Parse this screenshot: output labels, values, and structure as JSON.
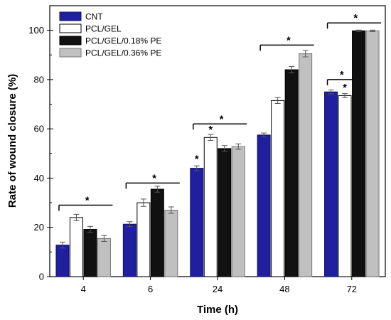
{
  "chart_data": {
    "type": "bar",
    "categories": [
      "4",
      "6",
      "24",
      "48",
      "72"
    ],
    "series": [
      {
        "name": "CNT",
        "values": [
          12.8,
          21.3,
          44.0,
          57.5,
          75.0
        ],
        "errors": [
          1.2,
          1.0,
          1.0,
          0.8,
          0.8
        ],
        "color": "#1f1fa0",
        "stroke": "#10106a"
      },
      {
        "name": "PCL/GEL",
        "values": [
          24.0,
          30.0,
          56.5,
          71.5,
          73.5
        ],
        "errors": [
          1.3,
          1.5,
          1.2,
          1.2,
          0.8
        ],
        "color": "#ffffff",
        "stroke": "#000000"
      },
      {
        "name": "PCL/GEL/0.18% PE",
        "values": [
          19.2,
          35.5,
          52.0,
          84.0,
          99.8
        ],
        "errors": [
          1.2,
          1.2,
          1.2,
          1.3,
          0.3
        ],
        "color": "#111111",
        "stroke": "#000000"
      },
      {
        "name": "PCL/GEL/0.36% PE",
        "values": [
          15.5,
          27.0,
          52.8,
          90.5,
          99.8
        ],
        "errors": [
          1.2,
          1.3,
          1.1,
          1.3,
          0.3
        ],
        "color": "#c0c0c0",
        "stroke": "#777777"
      }
    ],
    "xlabel": "Time (h)",
    "ylabel": "Rate of wound closure (%)",
    "ylim": [
      0,
      110
    ],
    "yticks": [
      0,
      20,
      40,
      60,
      80,
      100
    ],
    "grid": false,
    "legend_position": "top-left",
    "significance": [
      {
        "kind": "bracket",
        "group": 0,
        "from_series": 0,
        "to_series": 3,
        "y": 29,
        "label": "*"
      },
      {
        "kind": "bracket",
        "group": 1,
        "from_series": 0,
        "to_series": 3,
        "y": 38,
        "label": "*"
      },
      {
        "kind": "bracket",
        "group": 2,
        "from_series": 0,
        "to_series": 3,
        "y": 62,
        "label": "*"
      },
      {
        "kind": "star",
        "group": 2,
        "series": 0,
        "y": 47.5,
        "label": "*"
      },
      {
        "kind": "star",
        "group": 2,
        "series": 1,
        "y": 59.5,
        "label": "*"
      },
      {
        "kind": "bracket",
        "group": 3,
        "from_series": 0,
        "to_series": 3,
        "y": 94,
        "label": "*"
      },
      {
        "kind": "bracket",
        "group": 4,
        "from_series": 0,
        "to_series": 3,
        "y": 103,
        "label": "*"
      },
      {
        "kind": "bracket",
        "group": 4,
        "from_series": 0,
        "to_series": 1,
        "y": 80,
        "label": "*"
      },
      {
        "kind": "star",
        "group": 4,
        "series": 1,
        "y": 76.5,
        "label": "*"
      }
    ]
  }
}
